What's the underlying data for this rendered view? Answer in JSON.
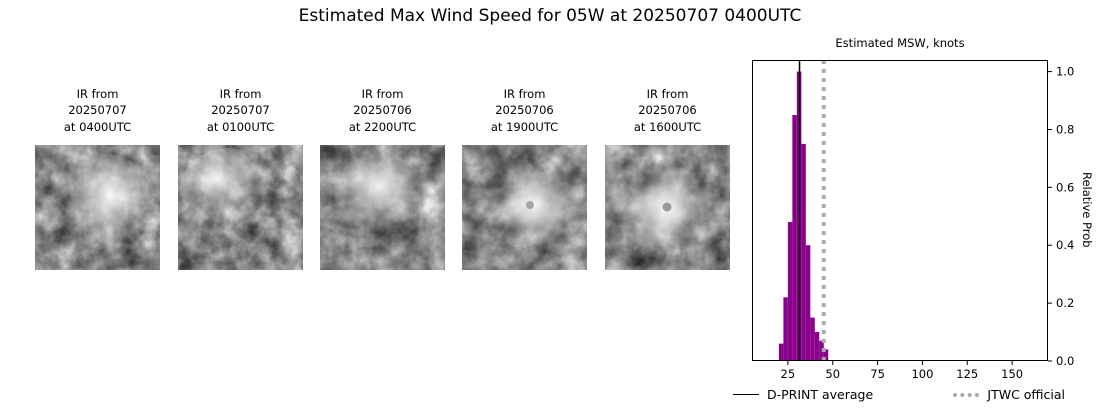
{
  "title": "Estimated Max Wind Speed for 05W at 20250707 0400UTC",
  "panels": [
    {
      "label": "IR from\n20250707\nat 0400UTC"
    },
    {
      "label": "IR from\n20250707\nat 0100UTC"
    },
    {
      "label": "IR from\n20250706\nat 2200UTC"
    },
    {
      "label": "IR from\n20250706\nat 1900UTC"
    },
    {
      "label": "IR from\n20250706\nat 1600UTC"
    }
  ],
  "chart": {
    "title": "Estimated MSW, knots",
    "ylabel": "Relative Prob",
    "legend": [
      {
        "label": "D-PRINT average",
        "style": "solid",
        "color": "#000000"
      },
      {
        "label": "JTWC official",
        "style": "dotted",
        "color": "#ababab"
      }
    ]
  },
  "chart_data": {
    "type": "bar",
    "title": "Estimated MSW, knots",
    "xlabel": "",
    "ylabel": "Relative Prob",
    "bar_color": "#8B008B",
    "jtwc_color": "#ababab",
    "xlim": [
      5,
      170
    ],
    "ylim": [
      0,
      1.04
    ],
    "xticks": [
      25,
      50,
      75,
      100,
      125,
      150
    ],
    "yticks": [
      "0.0",
      "0.2",
      "0.4",
      "0.6",
      "0.8",
      "1.0"
    ],
    "bin_width": 2.5,
    "bins_start": [
      20,
      22.5,
      25,
      27.5,
      30,
      32.5,
      35,
      37.5,
      40,
      42.5,
      45
    ],
    "values": [
      0.06,
      0.22,
      0.48,
      0.85,
      1.0,
      0.75,
      0.4,
      0.15,
      0.1,
      0.07,
      0.04
    ],
    "d_print_average": 31.5,
    "jtwc_official": 45,
    "grid": false,
    "legend_position": "bottom"
  }
}
